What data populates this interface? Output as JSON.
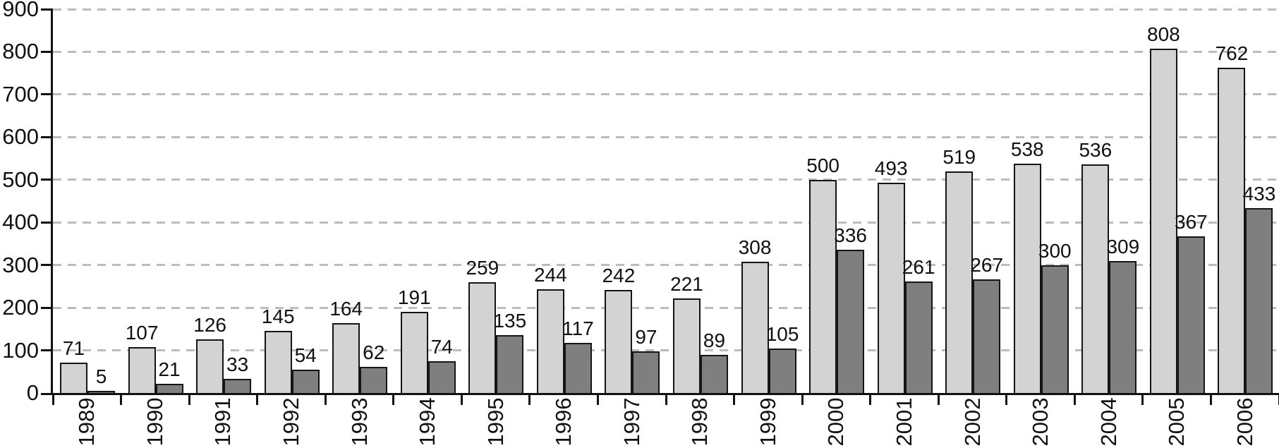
{
  "chart_data": {
    "type": "bar",
    "title": "",
    "xlabel": "",
    "ylabel": "",
    "categories": [
      "1989",
      "1990",
      "1991",
      "1992",
      "1993",
      "1994",
      "1995",
      "1996",
      "1997",
      "1998",
      "1999",
      "2000",
      "2001",
      "2002",
      "2003",
      "2004",
      "2005",
      "2006"
    ],
    "series": [
      {
        "name": "light-gray-series",
        "color": "#d3d3d3",
        "values": [
          71,
          107,
          126,
          145,
          164,
          191,
          259,
          244,
          242,
          221,
          308,
          500,
          493,
          519,
          538,
          536,
          808,
          762
        ]
      },
      {
        "name": "dark-gray-series",
        "color": "#7f7f7f",
        "values": [
          5,
          21,
          33,
          54,
          62,
          74,
          135,
          117,
          97,
          89,
          105,
          336,
          261,
          267,
          300,
          309,
          367,
          433
        ]
      }
    ],
    "ylim": [
      0,
      900
    ],
    "yticks": [
      0,
      100,
      200,
      300,
      400,
      500,
      600,
      700,
      800,
      900
    ],
    "grid": "horizontal-dashed",
    "gridline_color": "#bcbcbc",
    "axis_color": "#111111",
    "bar_border_color": "#151515",
    "value_labels": true,
    "legend": "none",
    "x_tick_label_rotation": -90
  }
}
